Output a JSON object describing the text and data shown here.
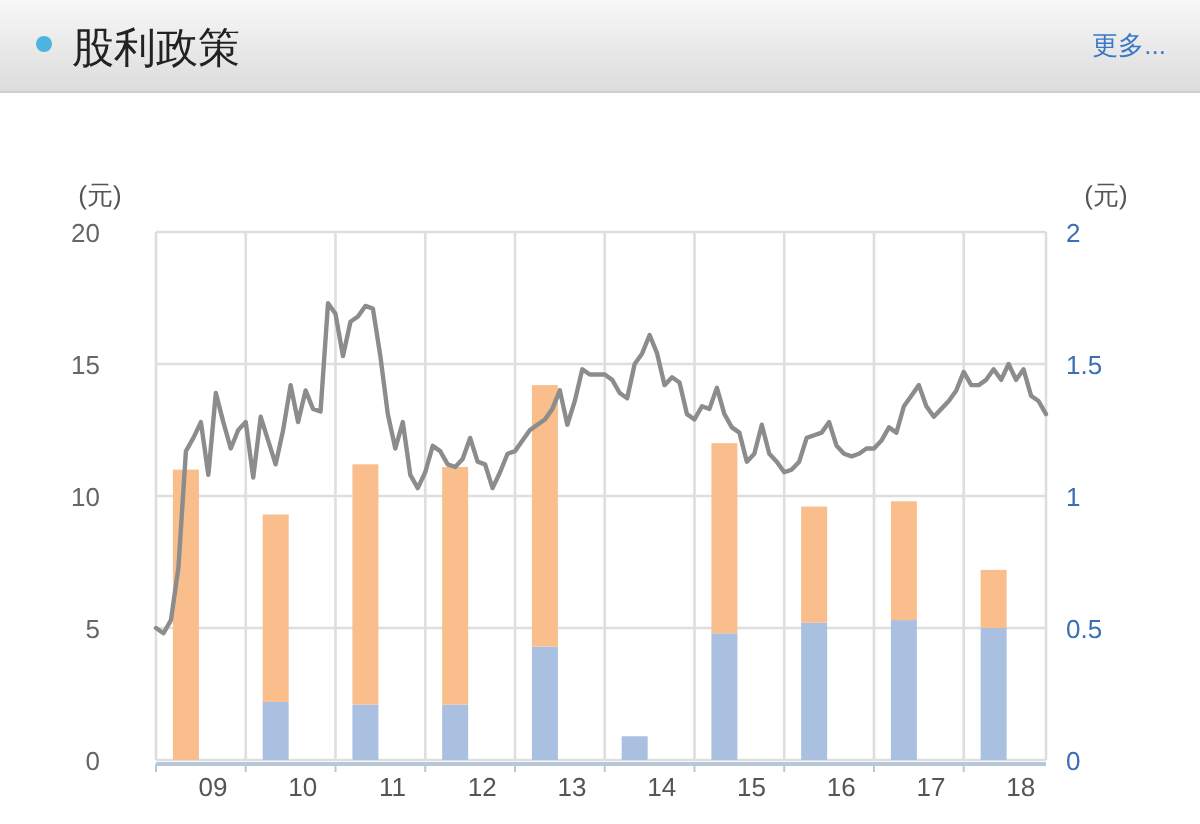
{
  "chart_data": {
    "type": "bar",
    "title": "股利政策",
    "annotations": [
      "更多..."
    ],
    "ylabel": "(元)",
    "y2label": "(元)",
    "stacked": true,
    "grid": true,
    "xlim": [
      "2009-01",
      "2018-12"
    ],
    "xticks": [
      {
        "value": "2009-01",
        "label": null
      },
      {
        "value": "2009-08-20",
        "label": "09"
      },
      {
        "value": "2010-01",
        "label": null
      },
      {
        "value": "2010-08-20",
        "label": "10"
      },
      {
        "value": "2011-01",
        "label": null
      },
      {
        "value": "2011-08-20",
        "label": "11"
      },
      {
        "value": "2012-01",
        "label": null
      },
      {
        "value": "2012-08-20",
        "label": "12"
      },
      {
        "value": "2013-01",
        "label": null
      },
      {
        "value": "2013-08-20",
        "label": "13"
      },
      {
        "value": "2014-01",
        "label": null
      },
      {
        "value": "2014-08-20",
        "label": "14"
      },
      {
        "value": "2015-01",
        "label": null
      },
      {
        "value": "2015-08-20",
        "label": "15"
      },
      {
        "value": "2016-01",
        "label": null
      },
      {
        "value": "2016-08-20",
        "label": "16"
      },
      {
        "value": "2017-01",
        "label": null
      },
      {
        "value": "2017-08-20",
        "label": "17"
      },
      {
        "value": "2018-01",
        "label": null
      },
      {
        "value": "2018-08-20",
        "label": "18"
      }
    ],
    "ylim": [
      0,
      20
    ],
    "yticks": [
      0,
      5,
      10,
      15,
      20
    ],
    "y2lim": [
      0,
      2
    ],
    "y2ticks": [
      0,
      0.5,
      1,
      1.5,
      2
    ],
    "series": [
      {
        "axis": "y2",
        "color": "#a9c0e0",
        "x": [
          "2009-05",
          "2010-05",
          "2011-05",
          "2012-05",
          "2013-05",
          "2014-05",
          "2015-05",
          "2016-05",
          "2017-05",
          "2018-05"
        ],
        "values": [
          0,
          0.22,
          0.21,
          0.21,
          0.43,
          0.09,
          0.48,
          0.52,
          0.53,
          0.5
        ]
      },
      {
        "axis": "y2",
        "color": "#f9be8c",
        "x": [
          "2009-05",
          "2010-05",
          "2011-05",
          "2012-05",
          "2013-05",
          "2014-05",
          "2015-05",
          "2016-05",
          "2017-05",
          "2018-05"
        ],
        "values": [
          1.1,
          0.71,
          0.91,
          0.9,
          0.99,
          0,
          0.72,
          0.44,
          0.45,
          0.22
        ]
      },
      {
        "type": "line",
        "color": "#8c8c8c",
        "line_style": "solid",
        "x": [
          "2009-01",
          "2009-02",
          "2009-03",
          "2009-04",
          "2009-05",
          "2009-06",
          "2009-07",
          "2009-08",
          "2009-09",
          "2009-10",
          "2009-11",
          "2009-12",
          "2010-01",
          "2010-02",
          "2010-03",
          "2010-04",
          "2010-05",
          "2010-06",
          "2010-07",
          "2010-08",
          "2010-09",
          "2010-10",
          "2010-11",
          "2010-12",
          "2011-01",
          "2011-02",
          "2011-03",
          "2011-04",
          "2011-05",
          "2011-06",
          "2011-07",
          "2011-08",
          "2011-09",
          "2011-10",
          "2011-11",
          "2011-12",
          "2012-01",
          "2012-02",
          "2012-03",
          "2012-04",
          "2012-05",
          "2012-06",
          "2012-07",
          "2012-08",
          "2012-09",
          "2012-10",
          "2012-11",
          "2012-12",
          "2013-01",
          "2013-02",
          "2013-03",
          "2013-04",
          "2013-05",
          "2013-06",
          "2013-07",
          "2013-08",
          "2013-09",
          "2013-10",
          "2013-11",
          "2013-12",
          "2014-01",
          "2014-02",
          "2014-03",
          "2014-04",
          "2014-05",
          "2014-06",
          "2014-07",
          "2014-08",
          "2014-09",
          "2014-10",
          "2014-11",
          "2014-12",
          "2015-01",
          "2015-02",
          "2015-03",
          "2015-04",
          "2015-05",
          "2015-06",
          "2015-07",
          "2015-08",
          "2015-09",
          "2015-10",
          "2015-11",
          "2015-12",
          "2016-01",
          "2016-02",
          "2016-03",
          "2016-04",
          "2016-05",
          "2016-06",
          "2016-07",
          "2016-08",
          "2016-09",
          "2016-10",
          "2016-11",
          "2016-12",
          "2017-01",
          "2017-02",
          "2017-03",
          "2017-04",
          "2017-05",
          "2017-06",
          "2017-07",
          "2017-08",
          "2017-09",
          "2017-10",
          "2017-11",
          "2017-12",
          "2018-01",
          "2018-02",
          "2018-03",
          "2018-04",
          "2018-05",
          "2018-06",
          "2018-07",
          "2018-08",
          "2018-09",
          "2018-10",
          "2018-11",
          "2018-12"
        ],
        "values": [
          5.0,
          4.8,
          5.3,
          7.3,
          11.7,
          12.2,
          12.8,
          10.8,
          13.9,
          12.8,
          11.8,
          12.5,
          12.8,
          10.7,
          13.0,
          12.1,
          11.2,
          12.5,
          14.2,
          12.8,
          14.0,
          13.3,
          13.2,
          17.3,
          16.9,
          15.3,
          16.6,
          16.8,
          17.2,
          17.1,
          15.3,
          13.1,
          11.8,
          12.8,
          10.8,
          10.3,
          10.9,
          11.9,
          11.7,
          11.2,
          11.1,
          11.4,
          12.2,
          11.3,
          11.2,
          10.3,
          10.9,
          11.6,
          11.7,
          12.1,
          12.5,
          12.7,
          12.9,
          13.3,
          14.0,
          12.7,
          13.6,
          14.8,
          14.6,
          14.6,
          14.6,
          14.4,
          13.9,
          13.7,
          15.0,
          15.4,
          16.1,
          15.4,
          14.2,
          14.5,
          14.3,
          13.1,
          12.9,
          13.4,
          13.3,
          14.1,
          13.1,
          12.6,
          12.4,
          11.3,
          11.6,
          12.7,
          11.6,
          11.3,
          10.9,
          11.0,
          11.3,
          12.2,
          12.3,
          12.4,
          12.8,
          11.9,
          11.6,
          11.5,
          11.6,
          11.8,
          11.8,
          12.1,
          12.6,
          12.4,
          13.4,
          13.8,
          14.2,
          13.4,
          13.0,
          13.3,
          13.6,
          14.0,
          14.7,
          14.2,
          14.2,
          14.4,
          14.8,
          14.4,
          15.0,
          14.4,
          14.8,
          13.8,
          13.6,
          13.1
        ]
      }
    ]
  }
}
